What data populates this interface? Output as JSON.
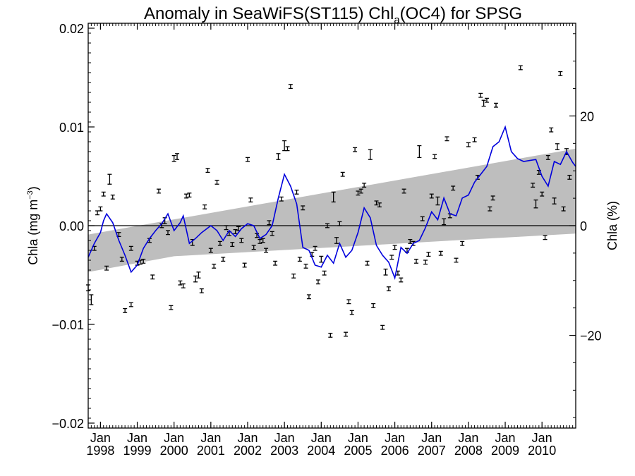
{
  "chart_data": {
    "type": "scatter",
    "title": {
      "main": "Anomaly in SeaWiFS(ST115) Chl",
      "sub": "a",
      "tail": "(OC4) for SPSG"
    },
    "ylabel_left": {
      "main": "Chla (mg m",
      "sup": "−3",
      "close": ")"
    },
    "ylabel_right": "Chla (%)",
    "x_range": [
      "1997-09",
      "2010-12"
    ],
    "ylim": [
      -0.0205,
      0.0205
    ],
    "right_axis": {
      "ticks": [
        20,
        0,
        -20
      ],
      "tick_labels": [
        "20",
        "0",
        "−20"
      ],
      "value_at_zero": 0,
      "value_at_0_01": 18.0
    },
    "y_ticks": [
      0.02,
      0.01,
      0.0,
      -0.01,
      -0.02
    ],
    "y_tick_labels": [
      "0.02",
      "0.01",
      "0.00",
      "−0.01",
      "−0.02"
    ],
    "x_ticks": [
      {
        "date": "1998-01",
        "l1": "Jan",
        "l2": "1998"
      },
      {
        "date": "1999-01",
        "l1": "Jan",
        "l2": "1999"
      },
      {
        "date": "2000-01",
        "l1": "Jan",
        "l2": "2000"
      },
      {
        "date": "2001-01",
        "l1": "Jan",
        "l2": "2001"
      },
      {
        "date": "2002-01",
        "l1": "Jan",
        "l2": "2002"
      },
      {
        "date": "2003-01",
        "l1": "Jan",
        "l2": "2003"
      },
      {
        "date": "2004-01",
        "l1": "Jan",
        "l2": "2004"
      },
      {
        "date": "2005-01",
        "l1": "Jan",
        "l2": "2005"
      },
      {
        "date": "2006-01",
        "l1": "Jan",
        "l2": "2006"
      },
      {
        "date": "2007-01",
        "l1": "Jan",
        "l2": "2007"
      },
      {
        "date": "2008-01",
        "l1": "Jan",
        "l2": "2008"
      },
      {
        "date": "2009-01",
        "l1": "Jan",
        "l2": "2009"
      },
      {
        "date": "2010-01",
        "l1": "Jan",
        "l2": "2010"
      }
    ],
    "confidence_band": {
      "upper": [
        [
          "1997-09",
          -0.0009
        ],
        [
          "2010-12",
          0.0078
        ]
      ],
      "lower": [
        [
          "1997-09",
          -0.0047
        ],
        [
          "2000-01",
          -0.0031
        ],
        [
          "2010-12",
          -0.0008
        ]
      ],
      "color": "#bebebe"
    },
    "smoothed_line": {
      "color": "#0000dd",
      "points": [
        [
          "1997-09",
          -0.0032
        ],
        [
          "1997-11",
          -0.0018
        ],
        [
          "1998-01",
          -0.0007
        ],
        [
          "1998-02",
          0.0005
        ],
        [
          "1998-03",
          0.0012
        ],
        [
          "1998-05",
          0.0003
        ],
        [
          "1998-07",
          -0.0015
        ],
        [
          "1998-09",
          -0.003
        ],
        [
          "1998-11",
          -0.0047
        ],
        [
          "1999-01",
          -0.004
        ],
        [
          "1999-03",
          -0.0023
        ],
        [
          "1999-05",
          -0.0013
        ],
        [
          "1999-07",
          -0.0005
        ],
        [
          "1999-09",
          0.0002
        ],
        [
          "1999-11",
          0.0012
        ],
        [
          "2000-01",
          -0.0005
        ],
        [
          "2000-03",
          0.0003
        ],
        [
          "2000-04",
          0.001
        ],
        [
          "2000-06",
          -0.0018
        ],
        [
          "2000-08",
          -0.0013
        ],
        [
          "2000-10",
          -0.0007
        ],
        [
          "2001-01",
          0.0
        ],
        [
          "2001-03",
          -0.0005
        ],
        [
          "2001-05",
          -0.0015
        ],
        [
          "2001-07",
          -0.0005
        ],
        [
          "2001-09",
          -0.0011
        ],
        [
          "2001-11",
          -0.0003
        ],
        [
          "2002-01",
          0.0002
        ],
        [
          "2002-03",
          0.0
        ],
        [
          "2002-05",
          -0.0013
        ],
        [
          "2002-07",
          -0.0009
        ],
        [
          "2002-09",
          0.0
        ],
        [
          "2002-11",
          0.0028
        ],
        [
          "2003-01",
          0.0052
        ],
        [
          "2003-03",
          0.004
        ],
        [
          "2003-05",
          0.0022
        ],
        [
          "2003-07",
          -0.0022
        ],
        [
          "2003-09",
          -0.0025
        ],
        [
          "2003-11",
          -0.004
        ],
        [
          "2004-01",
          -0.0042
        ],
        [
          "2004-03",
          -0.003
        ],
        [
          "2004-05",
          -0.0038
        ],
        [
          "2004-07",
          -0.0018
        ],
        [
          "2004-09",
          -0.0032
        ],
        [
          "2004-11",
          -0.0025
        ],
        [
          "2005-01",
          -0.0007
        ],
        [
          "2005-03",
          0.0018
        ],
        [
          "2005-05",
          0.0008
        ],
        [
          "2005-07",
          -0.002
        ],
        [
          "2005-09",
          -0.003
        ],
        [
          "2005-11",
          -0.0037
        ],
        [
          "2006-01",
          -0.0053
        ],
        [
          "2006-03",
          -0.0022
        ],
        [
          "2006-05",
          -0.0028
        ],
        [
          "2006-07",
          -0.0018
        ],
        [
          "2006-09",
          -0.0015
        ],
        [
          "2006-11",
          -0.0002
        ],
        [
          "2007-01",
          0.0014
        ],
        [
          "2007-03",
          0.0006
        ],
        [
          "2007-05",
          0.0028
        ],
        [
          "2007-07",
          0.0012
        ],
        [
          "2007-09",
          0.001
        ],
        [
          "2007-11",
          0.0028
        ],
        [
          "2008-01",
          0.0031
        ],
        [
          "2008-03",
          0.0044
        ],
        [
          "2008-05",
          0.0052
        ],
        [
          "2008-07",
          0.006
        ],
        [
          "2008-09",
          0.008
        ],
        [
          "2008-11",
          0.0085
        ],
        [
          "2009-01",
          0.01
        ],
        [
          "2009-03",
          0.0075
        ],
        [
          "2009-05",
          0.0068
        ],
        [
          "2009-07",
          0.0065
        ],
        [
          "2009-09",
          0.0066
        ],
        [
          "2009-11",
          0.0067
        ],
        [
          "2010-01",
          0.005
        ],
        [
          "2010-03",
          0.004
        ],
        [
          "2010-05",
          0.0065
        ],
        [
          "2010-07",
          0.0062
        ],
        [
          "2010-09",
          0.0075
        ],
        [
          "2010-11",
          0.0064
        ],
        [
          "2010-12",
          0.006
        ]
      ]
    },
    "points": [
      {
        "x": "1997-09",
        "y": -0.0063,
        "e": 0.0003
      },
      {
        "x": "1997-10",
        "y": -0.0075,
        "e": 0.0005
      },
      {
        "x": "1997-11",
        "y": -0.0023,
        "e": 0.0002
      },
      {
        "x": "1997-12",
        "y": 0.0013,
        "e": 0.0002
      },
      {
        "x": "1998-01",
        "y": 0.0017,
        "e": 0.0002
      },
      {
        "x": "1998-02",
        "y": 0.0032,
        "e": 0.0002
      },
      {
        "x": "1998-03",
        "y": -0.0043,
        "e": 0.0002
      },
      {
        "x": "1998-04",
        "y": 0.0047,
        "e": 0.0005
      },
      {
        "x": "1998-05",
        "y": 0.0029,
        "e": 0.0002
      },
      {
        "x": "1998-07",
        "y": -0.0009,
        "e": 0.0002
      },
      {
        "x": "1998-08",
        "y": -0.0034,
        "e": 0.0002
      },
      {
        "x": "1998-09",
        "y": -0.0086,
        "e": 0.0002
      },
      {
        "x": "1998-11",
        "y": -0.008,
        "e": 0.0002
      },
      {
        "x": "1998-11",
        "y": -0.0023,
        "e": 0.0002
      },
      {
        "x": "1999-01",
        "y": -0.0038,
        "e": 0.0002
      },
      {
        "x": "1999-02",
        "y": -0.0037,
        "e": 0.0002
      },
      {
        "x": "1999-03",
        "y": -0.0036,
        "e": 0.0002
      },
      {
        "x": "1999-05",
        "y": -0.0015,
        "e": 0.0002
      },
      {
        "x": "1999-06",
        "y": -0.0052,
        "e": 0.0002
      },
      {
        "x": "1999-08",
        "y": 0.0035,
        "e": 0.0002
      },
      {
        "x": "1999-09",
        "y": 0.0,
        "e": 0.0002
      },
      {
        "x": "1999-10",
        "y": 0.0005,
        "e": 0.0003
      },
      {
        "x": "1999-11",
        "y": -0.0007,
        "e": 0.0002
      },
      {
        "x": "1999-12",
        "y": -0.0083,
        "e": 0.0002
      },
      {
        "x": "2000-01",
        "y": 0.0068,
        "e": 0.0003
      },
      {
        "x": "2000-02",
        "y": 0.007,
        "e": 0.0003
      },
      {
        "x": "2000-03",
        "y": -0.0058,
        "e": 0.0002
      },
      {
        "x": "2000-04",
        "y": -0.0061,
        "e": 0.0002
      },
      {
        "x": "2000-05",
        "y": 0.003,
        "e": 0.0002
      },
      {
        "x": "2000-06",
        "y": 0.0031,
        "e": 0.0002
      },
      {
        "x": "2000-07",
        "y": -0.0017,
        "e": 0.0003
      },
      {
        "x": "2000-08",
        "y": -0.0054,
        "e": 0.0003
      },
      {
        "x": "2000-09",
        "y": -0.005,
        "e": 0.0003
      },
      {
        "x": "2000-10",
        "y": -0.0066,
        "e": 0.0002
      },
      {
        "x": "2000-11",
        "y": 0.0019,
        "e": 0.0002
      },
      {
        "x": "2000-12",
        "y": 0.0056,
        "e": 0.0002
      },
      {
        "x": "2001-01",
        "y": -0.0025,
        "e": 0.0002
      },
      {
        "x": "2001-02",
        "y": -0.0041,
        "e": 0.0002
      },
      {
        "x": "2001-03",
        "y": 0.0044,
        "e": 0.0002
      },
      {
        "x": "2001-04",
        "y": -0.0018,
        "e": 0.0002
      },
      {
        "x": "2001-05",
        "y": -0.0034,
        "e": 0.0002
      },
      {
        "x": "2001-06",
        "y": -0.0002,
        "e": 0.0002
      },
      {
        "x": "2001-07",
        "y": -0.0008,
        "e": 0.0002
      },
      {
        "x": "2001-08",
        "y": -0.0019,
        "e": 0.0002
      },
      {
        "x": "2001-09",
        "y": -0.0006,
        "e": 0.0002
      },
      {
        "x": "2001-10",
        "y": -0.0003,
        "e": 0.0002
      },
      {
        "x": "2001-11",
        "y": -0.0015,
        "e": 0.0002
      },
      {
        "x": "2001-12",
        "y": -0.004,
        "e": 0.0002
      },
      {
        "x": "2002-01",
        "y": 0.0067,
        "e": 0.0002
      },
      {
        "x": "2002-02",
        "y": 0.0026,
        "e": 0.0002
      },
      {
        "x": "2002-03",
        "y": -0.0022,
        "e": 0.0002
      },
      {
        "x": "2002-04",
        "y": -0.001,
        "e": 0.0002
      },
      {
        "x": "2002-05",
        "y": -0.0016,
        "e": 0.0002
      },
      {
        "x": "2002-06",
        "y": -0.0015,
        "e": 0.0002
      },
      {
        "x": "2002-07",
        "y": -0.0025,
        "e": 0.0002
      },
      {
        "x": "2002-08",
        "y": 0.0003,
        "e": 0.0002
      },
      {
        "x": "2002-09",
        "y": -0.0008,
        "e": 0.0002
      },
      {
        "x": "2002-10",
        "y": -0.0038,
        "e": 0.0002
      },
      {
        "x": "2002-11",
        "y": 0.007,
        "e": 0.0003
      },
      {
        "x": "2002-12",
        "y": 0.0027,
        "e": 0.0002
      },
      {
        "x": "2003-01",
        "y": 0.0081,
        "e": 0.0005
      },
      {
        "x": "2003-02",
        "y": 0.0078,
        "e": 0.0002
      },
      {
        "x": "2003-03",
        "y": 0.0141,
        "e": 0.0002
      },
      {
        "x": "2003-04",
        "y": -0.0051,
        "e": 0.0002
      },
      {
        "x": "2003-05",
        "y": 0.0034,
        "e": 0.0002
      },
      {
        "x": "2003-06",
        "y": -0.0034,
        "e": 0.0002
      },
      {
        "x": "2003-07",
        "y": 0.0018,
        "e": 0.0002
      },
      {
        "x": "2003-08",
        "y": -0.0041,
        "e": 0.0002
      },
      {
        "x": "2003-09",
        "y": -0.0072,
        "e": 0.0002
      },
      {
        "x": "2003-10",
        "y": -0.0029,
        "e": 0.0002
      },
      {
        "x": "2003-11",
        "y": -0.0023,
        "e": 0.0002
      },
      {
        "x": "2003-12",
        "y": -0.0057,
        "e": 0.0002
      },
      {
        "x": "2004-01",
        "y": -0.0034,
        "e": 0.0003
      },
      {
        "x": "2004-02",
        "y": -0.0048,
        "e": 0.0002
      },
      {
        "x": "2004-03",
        "y": 0.0,
        "e": 0.0002
      },
      {
        "x": "2004-04",
        "y": -0.0111,
        "e": 0.0002
      },
      {
        "x": "2004-05",
        "y": 0.0029,
        "e": 0.0005
      },
      {
        "x": "2004-06",
        "y": -0.0015,
        "e": 0.0003
      },
      {
        "x": "2004-07",
        "y": 0.0002,
        "e": 0.0002
      },
      {
        "x": "2004-08",
        "y": 0.0052,
        "e": 0.0002
      },
      {
        "x": "2004-09",
        "y": -0.011,
        "e": 0.0002
      },
      {
        "x": "2004-10",
        "y": -0.0077,
        "e": 0.0002
      },
      {
        "x": "2004-11",
        "y": -0.0088,
        "e": 0.0002
      },
      {
        "x": "2004-12",
        "y": 0.0077,
        "e": 0.0002
      },
      {
        "x": "2005-01",
        "y": 0.0033,
        "e": 0.0002
      },
      {
        "x": "2005-02",
        "y": 0.0035,
        "e": 0.0002
      },
      {
        "x": "2005-03",
        "y": 0.0041,
        "e": 0.0002
      },
      {
        "x": "2005-04",
        "y": -0.0038,
        "e": 0.0002
      },
      {
        "x": "2005-05",
        "y": 0.0072,
        "e": 0.0005
      },
      {
        "x": "2005-06",
        "y": -0.0081,
        "e": 0.0002
      },
      {
        "x": "2005-07",
        "y": 0.0023,
        "e": 0.0002
      },
      {
        "x": "2005-08",
        "y": 0.0021,
        "e": 0.0002
      },
      {
        "x": "2005-09",
        "y": -0.0103,
        "e": 0.0002
      },
      {
        "x": "2005-10",
        "y": -0.0047,
        "e": 0.0003
      },
      {
        "x": "2005-11",
        "y": -0.0064,
        "e": 0.0002
      },
      {
        "x": "2005-12",
        "y": -0.0032,
        "e": 0.0002
      },
      {
        "x": "2006-01",
        "y": -0.0022,
        "e": 0.0002
      },
      {
        "x": "2006-02",
        "y": -0.0048,
        "e": 0.0002
      },
      {
        "x": "2006-03",
        "y": -0.0055,
        "e": 0.0002
      },
      {
        "x": "2006-04",
        "y": 0.0035,
        "e": 0.0002
      },
      {
        "x": "2006-05",
        "y": -0.0025,
        "e": 0.0002
      },
      {
        "x": "2006-06",
        "y": -0.0016,
        "e": 0.0002
      },
      {
        "x": "2006-07",
        "y": -0.0018,
        "e": 0.0002
      },
      {
        "x": "2006-08",
        "y": -0.0036,
        "e": 0.0002
      },
      {
        "x": "2006-09",
        "y": 0.0075,
        "e": 0.0006
      },
      {
        "x": "2006-10",
        "y": 0.0007,
        "e": 0.0002
      },
      {
        "x": "2006-11",
        "y": -0.0037,
        "e": 0.0002
      },
      {
        "x": "2006-12",
        "y": -0.0029,
        "e": 0.0002
      },
      {
        "x": "2007-01",
        "y": 0.003,
        "e": 0.0002
      },
      {
        "x": "2007-02",
        "y": 0.007,
        "e": 0.0002
      },
      {
        "x": "2007-03",
        "y": 0.0025,
        "e": 0.0004
      },
      {
        "x": "2007-04",
        "y": -0.0028,
        "e": 0.0002
      },
      {
        "x": "2007-05",
        "y": 0.0004,
        "e": 0.0003
      },
      {
        "x": "2007-06",
        "y": 0.0088,
        "e": 0.0002
      },
      {
        "x": "2007-07",
        "y": 0.001,
        "e": 0.0002
      },
      {
        "x": "2007-08",
        "y": 0.0038,
        "e": 0.0002
      },
      {
        "x": "2007-09",
        "y": -0.0035,
        "e": 0.0002
      },
      {
        "x": "2007-11",
        "y": -0.0018,
        "e": 0.0002
      },
      {
        "x": "2008-01",
        "y": 0.0082,
        "e": 0.0002
      },
      {
        "x": "2008-03",
        "y": 0.0087,
        "e": 0.0002
      },
      {
        "x": "2008-04",
        "y": 0.0049,
        "e": 0.0002
      },
      {
        "x": "2008-05",
        "y": 0.0132,
        "e": 0.0002
      },
      {
        "x": "2008-06",
        "y": 0.0124,
        "e": 0.0003
      },
      {
        "x": "2008-07",
        "y": 0.0127,
        "e": 0.0002
      },
      {
        "x": "2008-08",
        "y": 0.0017,
        "e": 0.0002
      },
      {
        "x": "2008-09",
        "y": 0.0028,
        "e": 0.0002
      },
      {
        "x": "2008-10",
        "y": 0.0122,
        "e": 0.0002
      },
      {
        "x": "2009-06",
        "y": 0.016,
        "e": 0.0002
      },
      {
        "x": "2009-10",
        "y": 0.0041,
        "e": 0.0002
      },
      {
        "x": "2009-11",
        "y": 0.0022,
        "e": 0.0004
      },
      {
        "x": "2009-12",
        "y": 0.0054,
        "e": 0.0002
      },
      {
        "x": "2010-01",
        "y": 0.0032,
        "e": 0.0002
      },
      {
        "x": "2010-02",
        "y": -0.0012,
        "e": 0.0002
      },
      {
        "x": "2010-03",
        "y": 0.0069,
        "e": 0.0002
      },
      {
        "x": "2010-04",
        "y": 0.0097,
        "e": 0.0002
      },
      {
        "x": "2010-05",
        "y": 0.0025,
        "e": 0.0003
      },
      {
        "x": "2010-06",
        "y": 0.008,
        "e": 0.0003
      },
      {
        "x": "2010-07",
        "y": 0.0154,
        "e": 0.0002
      },
      {
        "x": "2010-08",
        "y": 0.0017,
        "e": 0.0002
      },
      {
        "x": "2010-09",
        "y": 0.0075,
        "e": 0.0003
      },
      {
        "x": "2010-10",
        "y": 0.0049,
        "e": 0.0002
      }
    ]
  }
}
